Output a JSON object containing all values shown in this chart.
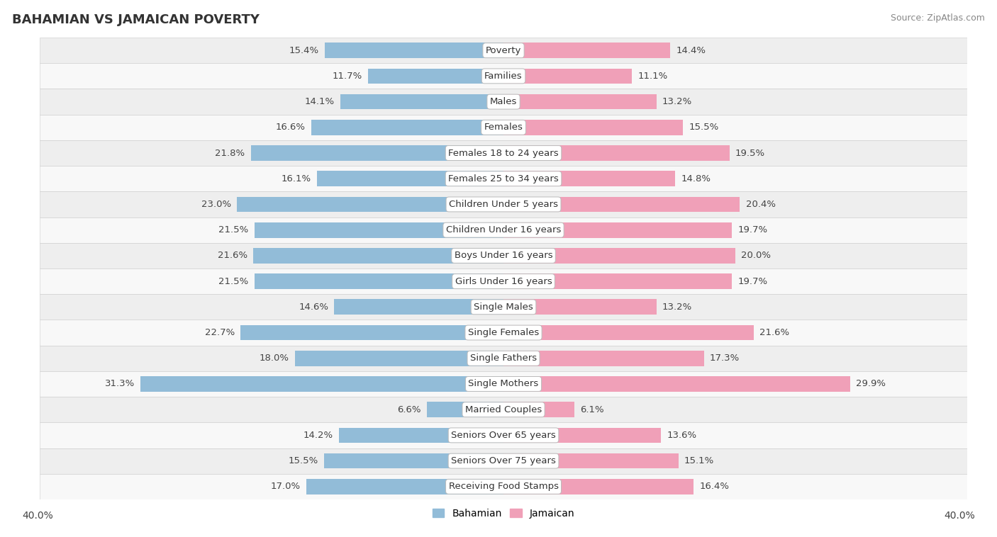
{
  "title": "BAHAMIAN VS JAMAICAN POVERTY",
  "source": "Source: ZipAtlas.com",
  "categories": [
    "Poverty",
    "Families",
    "Males",
    "Females",
    "Females 18 to 24 years",
    "Females 25 to 34 years",
    "Children Under 5 years",
    "Children Under 16 years",
    "Boys Under 16 years",
    "Girls Under 16 years",
    "Single Males",
    "Single Females",
    "Single Fathers",
    "Single Mothers",
    "Married Couples",
    "Seniors Over 65 years",
    "Seniors Over 75 years",
    "Receiving Food Stamps"
  ],
  "bahamian": [
    15.4,
    11.7,
    14.1,
    16.6,
    21.8,
    16.1,
    23.0,
    21.5,
    21.6,
    21.5,
    14.6,
    22.7,
    18.0,
    31.3,
    6.6,
    14.2,
    15.5,
    17.0
  ],
  "jamaican": [
    14.4,
    11.1,
    13.2,
    15.5,
    19.5,
    14.8,
    20.4,
    19.7,
    20.0,
    19.7,
    13.2,
    21.6,
    17.3,
    29.9,
    6.1,
    13.6,
    15.1,
    16.4
  ],
  "bahamian_color": "#92bcd8",
  "jamaican_color": "#f0a0b8",
  "row_bg_light": "#eeeeee",
  "row_bg_white": "#f8f8f8",
  "max_val": 40.0,
  "label_fontsize": 9.5,
  "title_fontsize": 13,
  "bar_height": 0.6
}
